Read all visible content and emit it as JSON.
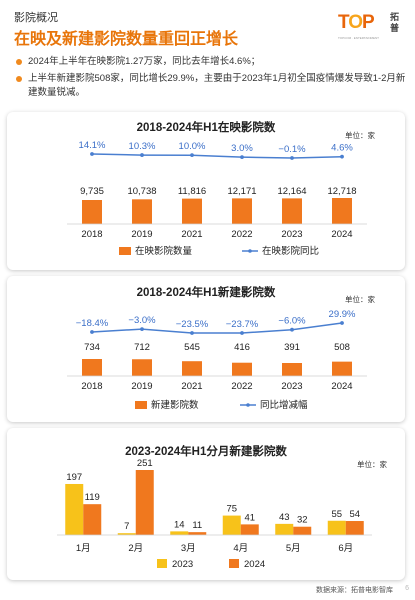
{
  "header": {
    "section_label": "影院概况",
    "headline": "在映及新建影院数量重回正增长"
  },
  "logo": {
    "brand": "TOP",
    "brand_cn": "拓普",
    "tagline": "TOPCOM · ENTERTAINMENT"
  },
  "bullets": [
    "2024年上半年在映影院1.27万家，同比去年增长4.6%；",
    "上半年新建影院508家，同比增长29.9%，主要由于2023年1月初全国疫情爆发导致1-2月新建数量锐减。"
  ],
  "colors": {
    "orange": "#f0781e",
    "blue_line": "#4a7fd0",
    "yellow": "#f7c21a",
    "accent_text": "#e8750a",
    "pct_text": "#3a6ec8"
  },
  "chart_data": [
    {
      "type": "bar",
      "title": "2018-2024年H1在映影院数",
      "unit": "单位：家",
      "categories": [
        "2018",
        "2019",
        "2021",
        "2022",
        "2023",
        "2024"
      ],
      "series": [
        {
          "name": "在映影院数量",
          "values": [
            9735,
            10738,
            11816,
            12171,
            12164,
            12718
          ],
          "labels": [
            "9,735",
            "10,738",
            "11,816",
            "12,171",
            "12,164",
            "12,718"
          ],
          "type": "bar",
          "color": "#f0781e"
        },
        {
          "name": "在映影院同比",
          "values": [
            14.1,
            10.3,
            10.0,
            3.0,
            -0.1,
            4.6
          ],
          "labels": [
            "14.1%",
            "10.3%",
            "10.0%",
            "3.0%",
            "−0.1%",
            "4.6%"
          ],
          "type": "line",
          "color": "#4a7fd0"
        }
      ]
    },
    {
      "type": "bar",
      "title": "2018-2024年H1新建影院数",
      "unit": "单位：家",
      "categories": [
        "2018",
        "2019",
        "2021",
        "2022",
        "2023",
        "2024"
      ],
      "series": [
        {
          "name": "新建影院数",
          "values": [
            734,
            712,
            545,
            416,
            391,
            508
          ],
          "labels": [
            "734",
            "712",
            "545",
            "416",
            "391",
            "508"
          ],
          "type": "bar",
          "color": "#f0781e"
        },
        {
          "name": "同比增减幅",
          "values": [
            -18.4,
            -3.0,
            -23.5,
            -23.7,
            -6.0,
            29.9
          ],
          "labels": [
            "−18.4%",
            "−3.0%",
            "−23.5%",
            "−23.7%",
            "−6.0%",
            "29.9%"
          ],
          "type": "line",
          "color": "#4a7fd0"
        }
      ]
    },
    {
      "type": "bar",
      "title": "2023-2024年H1分月新建影院数",
      "unit": "单位：家",
      "categories": [
        "1月",
        "2月",
        "3月",
        "4月",
        "5月",
        "6月"
      ],
      "series": [
        {
          "name": "2023",
          "values": [
            197,
            7,
            14,
            75,
            43,
            55
          ],
          "color": "#f7c21a"
        },
        {
          "name": "2024",
          "values": [
            119,
            251,
            11,
            41,
            32,
            54
          ],
          "color": "#f0781e"
        }
      ]
    }
  ],
  "footer": {
    "source": "数据来源：拓普电影智库",
    "page": "6"
  },
  "watermark": "TOP 拓普"
}
